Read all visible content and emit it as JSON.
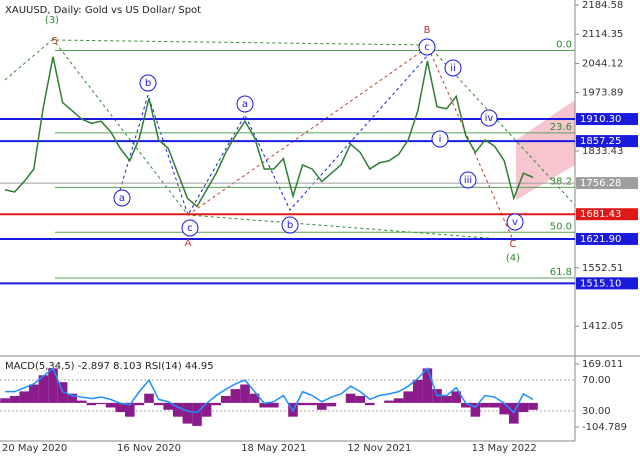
{
  "chart_data": [
    {
      "type": "line",
      "title": "XAUUSD, Daily:  Gold vs US Dollar/ Spot",
      "color": "#2f7d32",
      "categories": [
        "20 May 2020",
        null,
        null,
        null,
        null,
        null,
        null,
        null,
        null,
        null,
        null,
        null,
        null,
        null,
        null,
        "16 Nov 2020",
        null,
        null,
        null,
        null,
        null,
        null,
        null,
        null,
        null,
        null,
        null,
        null,
        "18 May 2021",
        null,
        null,
        null,
        null,
        null,
        null,
        null,
        null,
        null,
        null,
        "12 Nov 2021",
        null,
        null,
        null,
        null,
        null,
        null,
        null,
        null,
        null,
        null,
        null,
        null,
        "13 May 2022",
        null,
        null,
        null
      ],
      "values": [
        1740,
        1735,
        1760,
        1790,
        1940,
        2060,
        1950,
        1930,
        1910,
        1900,
        1905,
        1880,
        1840,
        1810,
        1865,
        1960,
        1860,
        1840,
        1780,
        1720,
        1700,
        1740,
        1780,
        1830,
        1870,
        1905,
        1865,
        1790,
        1790,
        1815,
        1725,
        1800,
        1790,
        1760,
        1780,
        1800,
        1850,
        1830,
        1790,
        1805,
        1810,
        1825,
        1860,
        1930,
        2050,
        1940,
        1935,
        1965,
        1870,
        1830,
        1860,
        1845,
        1810,
        1720,
        1780,
        1770
      ],
      "ylim": [
        1342.8,
        2196.6
      ],
      "yticks": [
        2184.58,
        2114.35,
        2044.12,
        1973.89,
        1833.43,
        1552.51,
        1412.05
      ],
      "levels": [
        {
          "value": 1910.3,
          "label": "1910.30",
          "color": "#1a1adc"
        },
        {
          "value": 1857.25,
          "label": "1857.25",
          "color": "#1a1adc"
        },
        {
          "value": 1756.28,
          "label": "1756.28",
          "color": "#9e9e9e"
        },
        {
          "value": 1681.43,
          "label": "1681.43",
          "color": "#e01818"
        },
        {
          "value": 1621.9,
          "label": "1621.90",
          "color": "#1a1adc"
        },
        {
          "value": 1515.1,
          "label": "1515.10",
          "color": "#1a1adc"
        }
      ],
      "fib_levels": [
        {
          "label": "0.0",
          "price": 2075
        },
        {
          "label": "23.6",
          "price": 1877
        },
        {
          "label": "38.2",
          "price": 1746
        },
        {
          "label": "50.0",
          "price": 1638
        },
        {
          "label": "61.8",
          "price": 1528
        }
      ],
      "annotations": [
        {
          "text": "(3)",
          "color": "#2f8a2f",
          "circled": false
        },
        {
          "text": "5",
          "color": "#c0392b",
          "circled": false
        },
        {
          "text": "B",
          "color": "#c0392b",
          "circled": false
        },
        {
          "text": "c",
          "color": "#1a1adc",
          "circled": true
        },
        {
          "text": "ii",
          "color": "#1a1adc",
          "circled": true
        },
        {
          "text": "i",
          "color": "#1a1adc",
          "circled": true
        },
        {
          "text": "iii",
          "color": "#1a1adc",
          "circled": true
        },
        {
          "text": "iv",
          "color": "#1a1adc",
          "circled": true
        },
        {
          "text": "v",
          "color": "#1a1adc",
          "circled": true
        },
        {
          "text": "C",
          "color": "#c0392b",
          "circled": false
        },
        {
          "text": "(4)",
          "color": "#2f8a2f",
          "circled": false
        },
        {
          "text": "A",
          "color": "#c0392b",
          "circled": false
        },
        {
          "text": "c",
          "color": "#1a1adc",
          "circled": true
        },
        {
          "text": "a",
          "color": "#1a1adc",
          "circled": true
        },
        {
          "text": "b",
          "color": "#1a1adc",
          "circled": true
        },
        {
          "text": "a",
          "color": "#1a1adc",
          "circled": true
        },
        {
          "text": "b",
          "color": "#1a1adc",
          "circled": true
        }
      ]
    },
    {
      "type": "indicator",
      "title": "MACD(5,34,5) -2.897 8.103 RSI(14) 44.95",
      "ylim": [
        -165.6,
        199.4
      ],
      "yticks": [
        169.011,
        -104.789
      ],
      "y2lim": [
        -8.7,
        99.7
      ],
      "y2ticks": [
        {
          "value": 70,
          "label": "70.00"
        },
        {
          "value": 30,
          "label": "30.00"
        }
      ],
      "series": [
        {
          "type": "bar",
          "color": "#8b1a8b",
          "values": [
            20,
            30,
            50,
            80,
            120,
            150,
            90,
            40,
            10,
            -10,
            -5,
            -20,
            -40,
            -60,
            -10,
            40,
            -10,
            -30,
            -60,
            -90,
            -100,
            -60,
            -10,
            30,
            60,
            80,
            40,
            -20,
            -20,
            0,
            -60,
            -10,
            -10,
            -30,
            -15,
            0,
            40,
            30,
            -10,
            0,
            10,
            20,
            50,
            100,
            150,
            60,
            30,
            50,
            -20,
            -60,
            -20,
            -20,
            -50,
            -90,
            -40,
            -30
          ]
        },
        {
          "type": "line",
          "axis": "y2",
          "color": "#1e90ff",
          "values": [
            55,
            55,
            60,
            65,
            75,
            85,
            55,
            50,
            48,
            46,
            48,
            45,
            40,
            38,
            55,
            70,
            45,
            42,
            35,
            30,
            28,
            40,
            50,
            58,
            65,
            70,
            55,
            40,
            42,
            50,
            30,
            55,
            50,
            42,
            48,
            52,
            62,
            55,
            45,
            50,
            52,
            55,
            62,
            72,
            85,
            50,
            50,
            60,
            40,
            35,
            50,
            48,
            40,
            28,
            52,
            45
          ]
        }
      ]
    }
  ]
}
